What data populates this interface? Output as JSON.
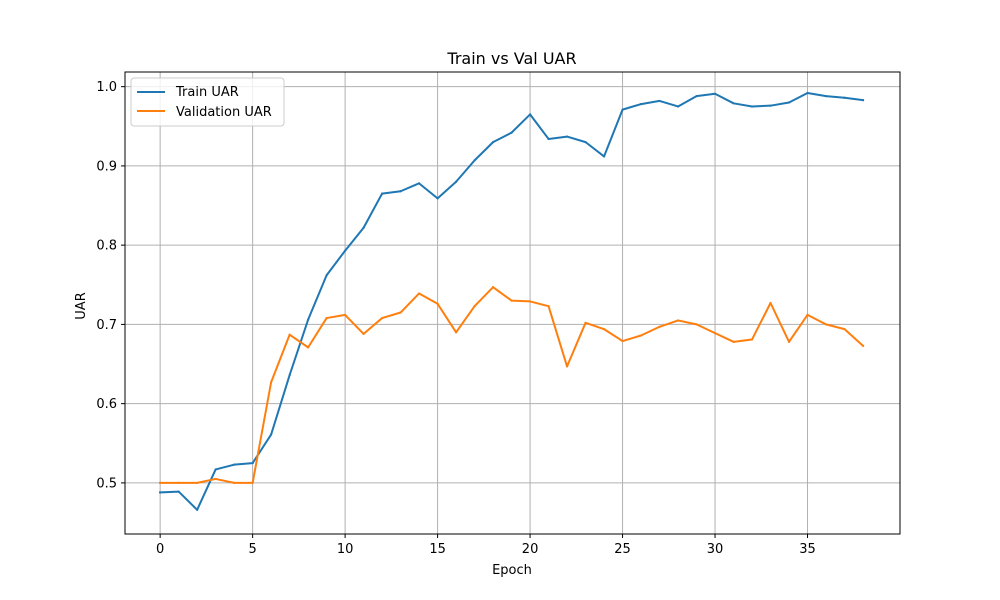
{
  "chart_data": {
    "type": "line",
    "title": "Train vs Val UAR",
    "xlabel": "Epoch",
    "ylabel": "UAR",
    "xlim": [
      -1.9,
      40.0
    ],
    "ylim": [
      0.4355,
      1.0185
    ],
    "xticks": [
      0,
      5,
      10,
      15,
      20,
      25,
      30,
      35
    ],
    "xtick_labels": [
      "0",
      "5",
      "10",
      "15",
      "20",
      "25",
      "30",
      "35"
    ],
    "yticks": [
      0.5,
      0.6,
      0.7,
      0.8,
      0.9,
      1.0
    ],
    "ytick_labels": [
      "0.5",
      "0.6",
      "0.7",
      "0.8",
      "0.9",
      "1.0"
    ],
    "grid": true,
    "legend_position": "top-left",
    "x": [
      0,
      1,
      2,
      3,
      4,
      5,
      6,
      7,
      8,
      9,
      10,
      11,
      12,
      13,
      14,
      15,
      16,
      17,
      18,
      19,
      20,
      21,
      22,
      23,
      24,
      25,
      26,
      27,
      28,
      29,
      30,
      31,
      32,
      33,
      34,
      35,
      36,
      37,
      38
    ],
    "series": [
      {
        "name": "Train UAR",
        "color": "#1f77b4",
        "values": [
          0.488,
          0.489,
          0.466,
          0.517,
          0.523,
          0.525,
          0.561,
          0.636,
          0.706,
          0.762,
          0.793,
          0.822,
          0.865,
          0.868,
          0.878,
          0.859,
          0.88,
          0.907,
          0.93,
          0.942,
          0.965,
          0.934,
          0.937,
          0.93,
          0.912,
          0.971,
          0.978,
          0.982,
          0.975,
          0.988,
          0.991,
          0.979,
          0.975,
          0.976,
          0.98,
          0.992,
          0.988,
          0.986,
          0.983
        ]
      },
      {
        "name": "Validation UAR",
        "color": "#ff7f0e",
        "values": [
          0.5,
          0.5,
          0.5,
          0.505,
          0.5,
          0.5,
          0.627,
          0.687,
          0.671,
          0.708,
          0.712,
          0.688,
          0.708,
          0.715,
          0.739,
          0.726,
          0.69,
          0.723,
          0.747,
          0.73,
          0.729,
          0.723,
          0.647,
          0.702,
          0.694,
          0.679,
          0.686,
          0.697,
          0.705,
          0.7,
          0.689,
          0.678,
          0.681,
          0.727,
          0.678,
          0.712,
          0.7,
          0.694,
          0.673
        ]
      }
    ]
  }
}
